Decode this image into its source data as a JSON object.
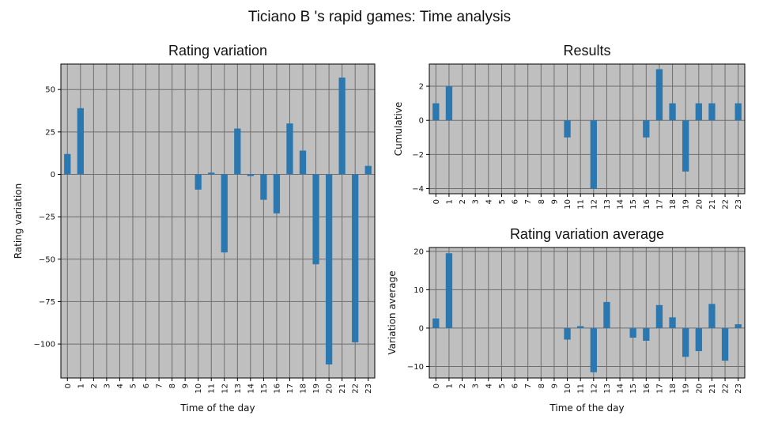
{
  "title": "Ticiano B 's rapid games: Time analysis",
  "colors": {
    "bar": "#2b78b0",
    "panel_bg": "#bfbfbf",
    "grid": "#6e6e6e",
    "frame": "#000000"
  },
  "chart_data": [
    {
      "type": "bar",
      "title": "Rating variation",
      "xlabel": "Time of the day",
      "ylabel": "Rating variation",
      "categories": [
        "0",
        "1",
        "2",
        "3",
        "4",
        "5",
        "6",
        "7",
        "8",
        "9",
        "10",
        "11",
        "12",
        "13",
        "14",
        "15",
        "16",
        "17",
        "18",
        "19",
        "20",
        "21",
        "22",
        "23"
      ],
      "values": [
        12,
        39,
        0,
        0,
        0,
        0,
        0,
        0,
        0,
        0,
        -9,
        1,
        -46,
        27,
        -1,
        -15,
        -23,
        30,
        14,
        -53,
        -112,
        57,
        -99,
        5
      ],
      "ylim": [
        -120,
        65
      ],
      "yticks": [
        50,
        25,
        0,
        -25,
        -50,
        -75,
        -100
      ],
      "ytick_labels": [
        "50",
        "25",
        "0",
        "−25",
        "−50",
        "−75",
        "−100"
      ],
      "grid": true
    },
    {
      "type": "bar",
      "title": "Results",
      "xlabel": "",
      "ylabel": "Cumulative",
      "categories": [
        "0",
        "1",
        "2",
        "3",
        "4",
        "5",
        "6",
        "7",
        "8",
        "9",
        "10",
        "11",
        "12",
        "13",
        "14",
        "15",
        "16",
        "17",
        "18",
        "19",
        "20",
        "21",
        "22",
        "23"
      ],
      "values": [
        1,
        2,
        0,
        0,
        0,
        0,
        0,
        0,
        0,
        0,
        -1,
        0,
        -4,
        0,
        0,
        0,
        -1,
        3,
        1,
        -3,
        1,
        1,
        0,
        1
      ],
      "ylim": [
        -4.3,
        3.3
      ],
      "yticks": [
        2,
        0,
        -2,
        -4
      ],
      "ytick_labels": [
        "2",
        "0",
        "−2",
        "−4"
      ],
      "grid": true
    },
    {
      "type": "bar",
      "title": "Rating variation average",
      "xlabel": "Time of the day",
      "ylabel": "Variation average",
      "categories": [
        "0",
        "1",
        "2",
        "3",
        "4",
        "5",
        "6",
        "7",
        "8",
        "9",
        "10",
        "11",
        "12",
        "13",
        "14",
        "15",
        "16",
        "17",
        "18",
        "19",
        "20",
        "21",
        "22",
        "23"
      ],
      "values": [
        2.5,
        19.5,
        0,
        0,
        0,
        0,
        0,
        0,
        0,
        0,
        -3,
        0.5,
        -11.5,
        6.8,
        0,
        -2.5,
        -3.3,
        6,
        2.8,
        -7.5,
        -6,
        6.3,
        -8.5,
        1
      ],
      "ylim": [
        -13,
        21
      ],
      "yticks": [
        20,
        10,
        0,
        -10
      ],
      "ytick_labels": [
        "20",
        "10",
        "0",
        "−10"
      ],
      "grid": true
    }
  ]
}
